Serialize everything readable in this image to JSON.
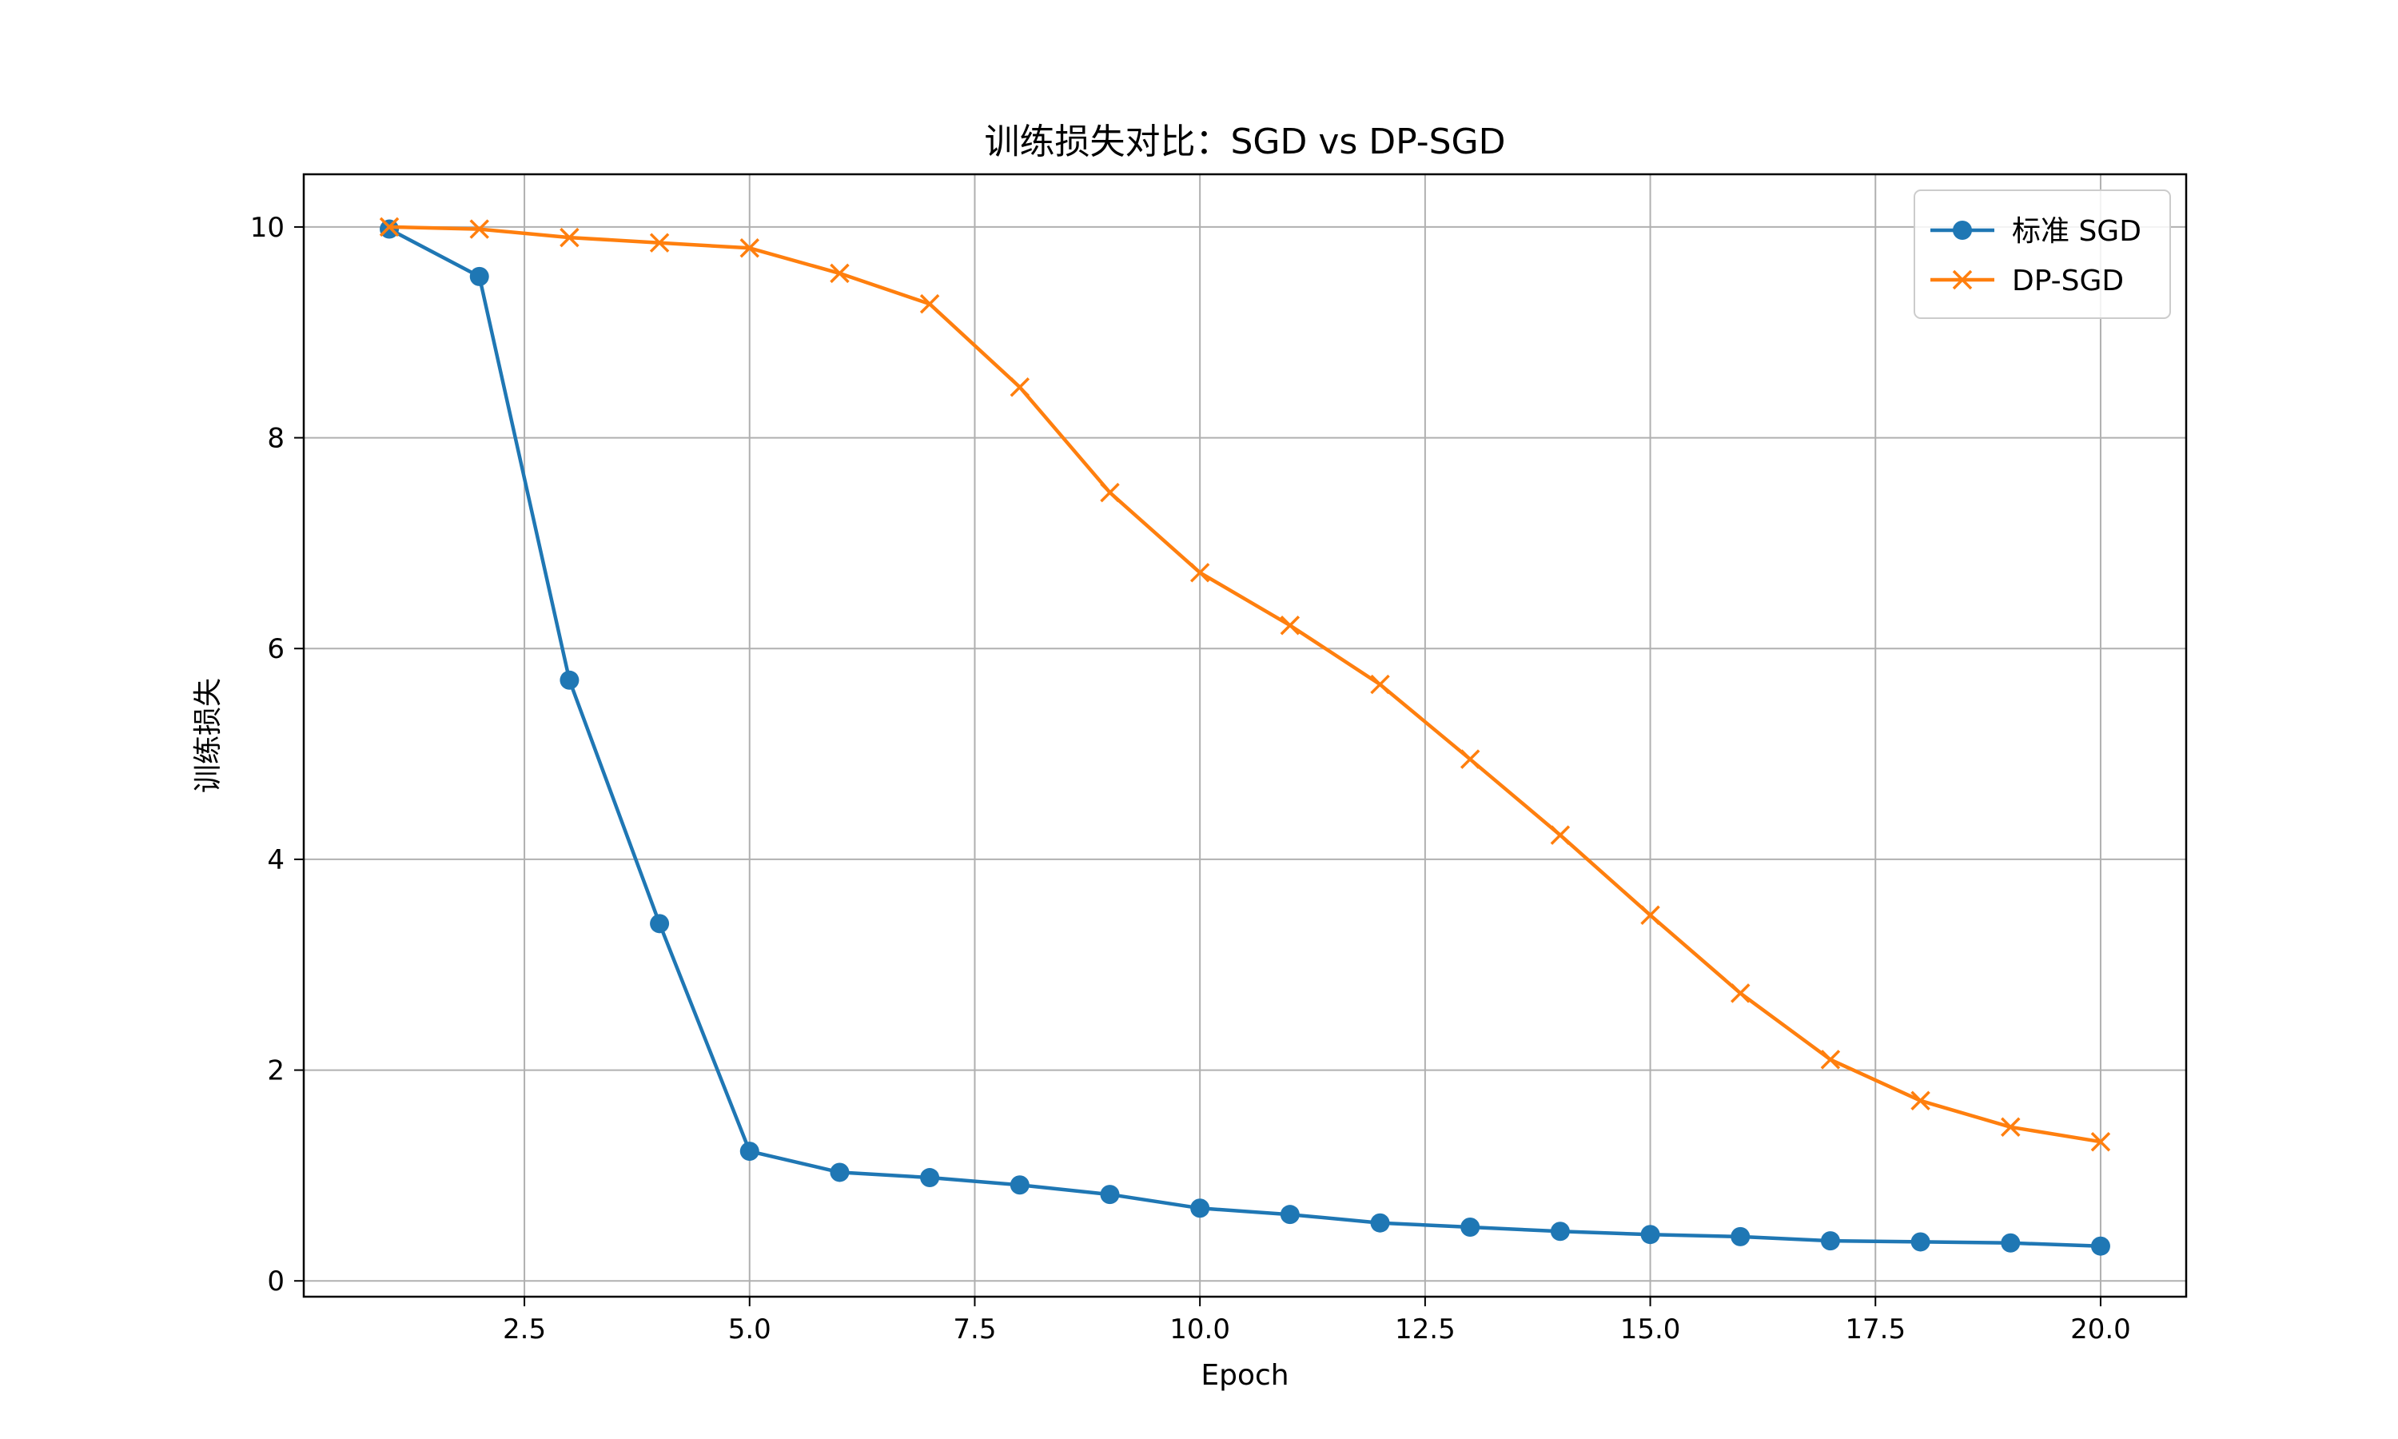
{
  "chart_data": {
    "type": "line",
    "title": "训练损失对比：SGD vs DP-SGD",
    "xlabel": "Epoch",
    "ylabel": "训练损失",
    "xlim": [
      0.05,
      20.95
    ],
    "ylim": [
      -0.15,
      10.5
    ],
    "xticks": [
      2.5,
      5.0,
      7.5,
      10.0,
      12.5,
      15.0,
      17.5,
      20.0
    ],
    "xtick_labels": [
      "2.5",
      "5.0",
      "7.5",
      "10.0",
      "12.5",
      "15.0",
      "17.5",
      "20.0"
    ],
    "yticks": [
      0,
      2,
      4,
      6,
      8,
      10
    ],
    "ytick_labels": [
      "0",
      "2",
      "4",
      "6",
      "8",
      "10"
    ],
    "grid": true,
    "legend_position": "top-right",
    "x": [
      1,
      2,
      3,
      4,
      5,
      6,
      7,
      8,
      9,
      10,
      11,
      12,
      13,
      14,
      15,
      16,
      17,
      18,
      19,
      20
    ],
    "series": [
      {
        "name": "标准 SGD",
        "color": "#1f77b4",
        "marker": "circle",
        "values": [
          9.98,
          9.53,
          5.7,
          3.39,
          1.23,
          1.03,
          0.98,
          0.91,
          0.82,
          0.69,
          0.63,
          0.55,
          0.51,
          0.47,
          0.44,
          0.42,
          0.38,
          0.37,
          0.36,
          0.33
        ]
      },
      {
        "name": "DP-SGD",
        "color": "#ff7f0e",
        "marker": "x",
        "values": [
          10.0,
          9.98,
          9.9,
          9.85,
          9.8,
          9.56,
          9.27,
          8.48,
          7.48,
          6.72,
          6.22,
          5.66,
          4.95,
          4.23,
          3.47,
          2.73,
          2.1,
          1.71,
          1.46,
          1.32
        ]
      }
    ]
  }
}
